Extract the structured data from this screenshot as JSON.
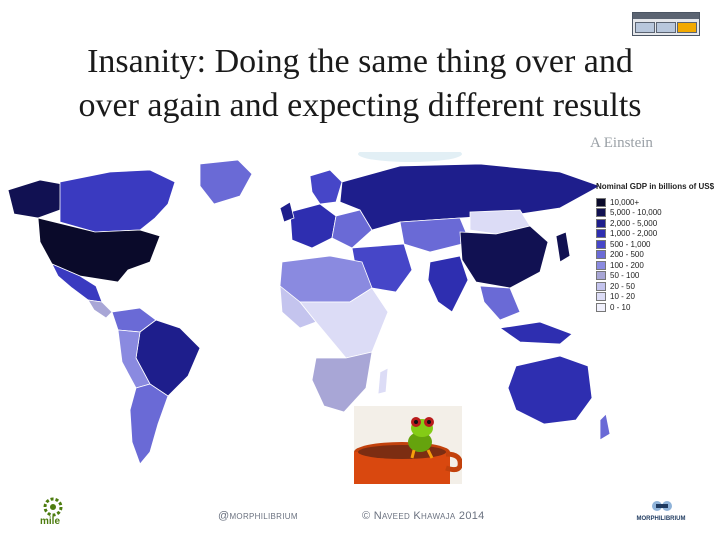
{
  "slide": {
    "title_line1": "Insanity: Doing the same thing over and",
    "title_line2": "over again and expecting different results",
    "author": "A Einstein"
  },
  "legend": {
    "title": "Nominal GDP in billions of US$",
    "items": [
      {
        "label": "10,000+",
        "color": "#0a0a2a"
      },
      {
        "label": "5,000 - 10,000",
        "color": "#111152"
      },
      {
        "label": "2,000 - 5,000",
        "color": "#1e1e8c"
      },
      {
        "label": "1,000 - 2,000",
        "color": "#2e2eb0"
      },
      {
        "label": "500 - 1,000",
        "color": "#4646c8"
      },
      {
        "label": "200 - 500",
        "color": "#6a6ad6"
      },
      {
        "label": "100 - 200",
        "color": "#8a8ae0"
      },
      {
        "label": "50 - 100",
        "color": "#a8a6d6"
      },
      {
        "label": "20 - 50",
        "color": "#c4c4ee"
      },
      {
        "label": "10 - 20",
        "color": "#dcdcf6"
      },
      {
        "label": "0 - 10",
        "color": "#f0f0fc"
      }
    ]
  },
  "footer": {
    "handle": "@morphilibrium",
    "copyright": "© Naveed Khawaja 2014",
    "left_logo_text": "mile",
    "right_logo_text": "MORPHILIBRIUM"
  },
  "colors": {
    "title_text": "#1a1a1a",
    "author_text": "#9aa0a6",
    "footer_text": "#6b7280",
    "accent_orange": "#f2a900",
    "logo_blue": "#8fb3d9"
  }
}
